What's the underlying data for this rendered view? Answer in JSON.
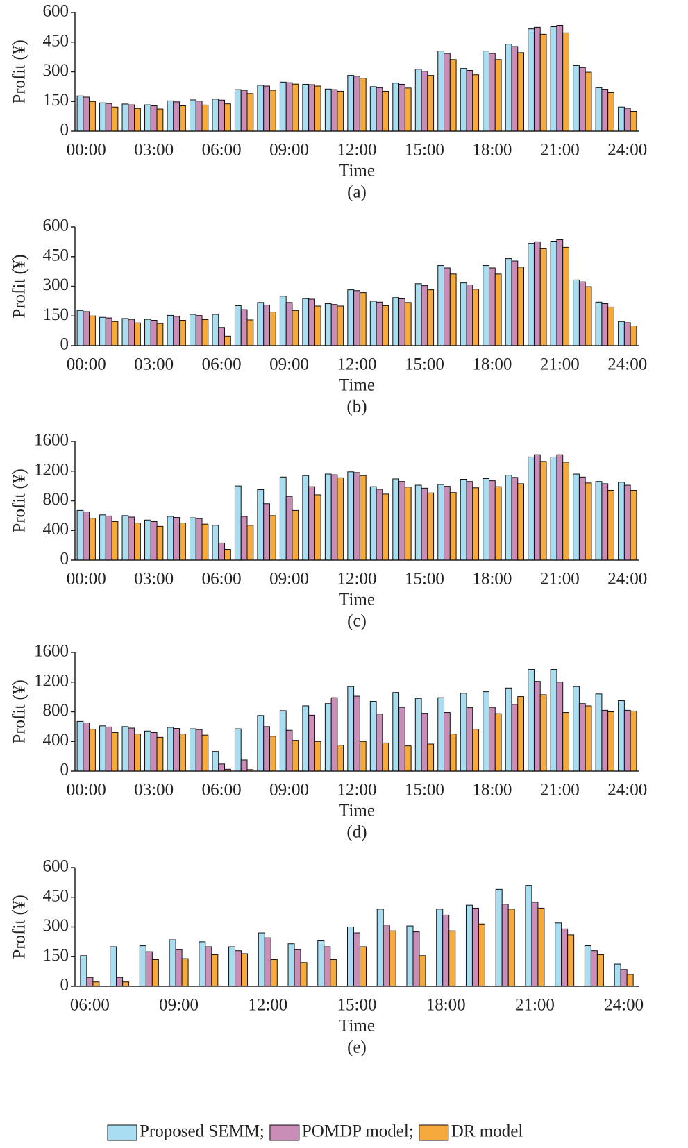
{
  "legend": [
    {
      "name": "Proposed SEMM;",
      "color": "#a9def2"
    },
    {
      "name": "POMDP model;",
      "color": "#c98db8"
    },
    {
      "name": "DR model",
      "color": "#f7aa3c"
    }
  ],
  "chart_data": [
    {
      "type": "bar",
      "ylabel": "Profit (¥)",
      "xlabel": "Time",
      "caption": "(a)",
      "categories": [
        "00:00",
        null,
        null,
        "03:00",
        null,
        null,
        "06:00",
        null,
        null,
        "09:00",
        null,
        null,
        "12:00",
        null,
        null,
        "15:00",
        null,
        null,
        "18:00",
        null,
        null,
        "21:00",
        null,
        null,
        "24:00"
      ],
      "series": [
        {
          "values": [
            178,
            143,
            137,
            133,
            153,
            158,
            162,
            210,
            232,
            248,
            237,
            213,
            282,
            225,
            243,
            313,
            405,
            317,
            405,
            440,
            517,
            528,
            332,
            220,
            122
          ]
        },
        {
          "values": [
            172,
            140,
            133,
            128,
            148,
            152,
            157,
            207,
            228,
            245,
            235,
            210,
            278,
            220,
            237,
            303,
            393,
            307,
            393,
            428,
            525,
            535,
            322,
            212,
            116
          ]
        },
        {
          "values": [
            150,
            122,
            115,
            112,
            128,
            132,
            138,
            190,
            207,
            238,
            228,
            202,
            268,
            202,
            218,
            282,
            362,
            285,
            362,
            397,
            490,
            497,
            298,
            195,
            100
          ]
        }
      ],
      "ylim": [
        0,
        600
      ],
      "yticks": [
        0,
        150,
        300,
        450,
        600
      ]
    },
    {
      "type": "bar",
      "ylabel": "Profit (¥)",
      "xlabel": "Time",
      "caption": "(b)",
      "categories": [
        "00:00",
        null,
        null,
        "03:00",
        null,
        null,
        "06:00",
        null,
        null,
        "09:00",
        null,
        null,
        "12:00",
        null,
        null,
        "15:00",
        null,
        null,
        "18:00",
        null,
        null,
        "21:00",
        null,
        null,
        "24:00"
      ],
      "series": [
        {
          "values": [
            178,
            143,
            137,
            133,
            153,
            158,
            158,
            202,
            218,
            250,
            238,
            212,
            282,
            225,
            243,
            313,
            405,
            317,
            405,
            440,
            517,
            528,
            332,
            220,
            122
          ]
        },
        {
          "values": [
            172,
            140,
            133,
            128,
            148,
            152,
            92,
            182,
            205,
            218,
            235,
            208,
            278,
            220,
            237,
            303,
            393,
            307,
            393,
            428,
            525,
            535,
            322,
            212,
            116
          ]
        },
        {
          "values": [
            150,
            122,
            115,
            112,
            128,
            132,
            48,
            130,
            170,
            178,
            200,
            200,
            268,
            202,
            218,
            282,
            362,
            285,
            362,
            397,
            490,
            497,
            298,
            195,
            100
          ]
        }
      ],
      "ylim": [
        0,
        600
      ],
      "yticks": [
        0,
        150,
        300,
        450,
        600
      ]
    },
    {
      "type": "bar",
      "ylabel": "Profit (¥)",
      "xlabel": "Time",
      "caption": "(c)",
      "categories": [
        "00:00",
        null,
        null,
        "03:00",
        null,
        null,
        "06:00",
        null,
        null,
        "09:00",
        null,
        null,
        "12:00",
        null,
        null,
        "15:00",
        null,
        null,
        "18:00",
        null,
        null,
        "21:00",
        null,
        null,
        "24:00"
      ],
      "series": [
        {
          "values": [
            670,
            610,
            600,
            540,
            590,
            570,
            470,
            1000,
            950,
            1120,
            1140,
            1160,
            1190,
            990,
            1095,
            1010,
            1020,
            1090,
            1100,
            1145,
            1390,
            1390,
            1160,
            1060,
            1050
          ]
        },
        {
          "values": [
            650,
            595,
            580,
            520,
            575,
            560,
            230,
            590,
            760,
            860,
            990,
            1150,
            1180,
            955,
            1060,
            970,
            995,
            1060,
            1070,
            1115,
            1420,
            1420,
            1120,
            1030,
            1010
          ]
        },
        {
          "values": [
            565,
            520,
            500,
            455,
            500,
            485,
            145,
            470,
            600,
            670,
            880,
            1110,
            1140,
            890,
            985,
            905,
            910,
            975,
            990,
            1030,
            1330,
            1320,
            1040,
            940,
            940
          ]
        }
      ],
      "ylim": [
        0,
        1600
      ],
      "yticks": [
        0,
        400,
        800,
        1200,
        1600
      ]
    },
    {
      "type": "bar",
      "ylabel": "Profit (¥)",
      "xlabel": "Time",
      "caption": "(d)",
      "categories": [
        "00:00",
        null,
        null,
        "03:00",
        null,
        null,
        "06:00",
        null,
        null,
        "09:00",
        null,
        null,
        "12:00",
        null,
        null,
        "15:00",
        null,
        null,
        "18:00",
        null,
        null,
        "21:00",
        null,
        null,
        "24:00"
      ],
      "series": [
        {
          "values": [
            670,
            610,
            600,
            540,
            590,
            570,
            265,
            570,
            750,
            815,
            880,
            910,
            1140,
            940,
            1060,
            980,
            990,
            1050,
            1070,
            1120,
            1370,
            1370,
            1140,
            1040,
            950
          ]
        },
        {
          "values": [
            650,
            595,
            580,
            520,
            575,
            560,
            95,
            150,
            600,
            550,
            755,
            990,
            1010,
            770,
            860,
            780,
            790,
            855,
            860,
            900,
            1210,
            1200,
            910,
            820,
            820
          ]
        },
        {
          "values": [
            565,
            520,
            500,
            455,
            500,
            485,
            25,
            20,
            470,
            415,
            400,
            350,
            400,
            380,
            340,
            365,
            500,
            565,
            775,
            1005,
            1030,
            790,
            880,
            800,
            810
          ]
        }
      ],
      "ylim": [
        0,
        1600
      ],
      "yticks": [
        0,
        400,
        800,
        1200,
        1600
      ]
    },
    {
      "type": "bar",
      "ylabel": "Profit (¥)",
      "xlabel": "Time",
      "caption": "(e)",
      "categories": [
        "06:00",
        null,
        null,
        "09:00",
        null,
        null,
        "12:00",
        null,
        null,
        "15:00",
        null,
        null,
        "18:00",
        null,
        null,
        "21:00",
        null,
        null,
        "24:00"
      ],
      "series": [
        {
          "values": [
            155,
            200,
            205,
            235,
            225,
            200,
            270,
            215,
            230,
            300,
            390,
            305,
            390,
            410,
            490,
            510,
            320,
            205,
            112
          ]
        },
        {
          "values": [
            45,
            45,
            175,
            185,
            200,
            180,
            245,
            185,
            200,
            270,
            310,
            275,
            360,
            395,
            415,
            425,
            290,
            180,
            85
          ]
        },
        {
          "values": [
            22,
            22,
            135,
            140,
            160,
            165,
            135,
            120,
            135,
            200,
            280,
            155,
            280,
            315,
            390,
            395,
            260,
            160,
            60
          ]
        }
      ],
      "ylim": [
        0,
        600
      ],
      "yticks": [
        0,
        150,
        300,
        450,
        600
      ]
    }
  ]
}
